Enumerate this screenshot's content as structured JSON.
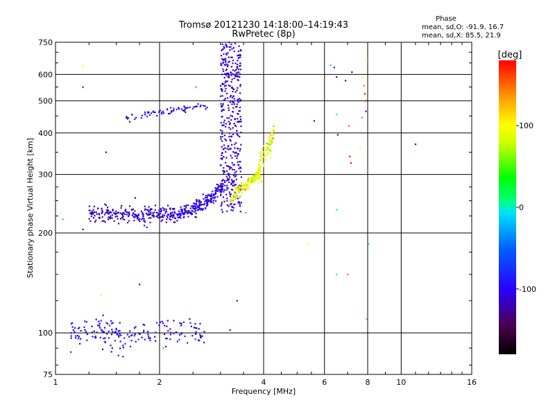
{
  "chart_data": {
    "type": "scatter",
    "title": "Tromsø 20121230 14:18:00–14:19:43",
    "subtitle": "RwPretec (8p)",
    "xlabel": "Frequency [MHz]",
    "ylabel": "Stationary phase Virtual Height [km]",
    "xscale": "log",
    "yscale": "log",
    "xlim": [
      1,
      16
    ],
    "ylim": [
      75,
      750
    ],
    "x_ticks": [
      1,
      2,
      4,
      6,
      8,
      10,
      16
    ],
    "y_ticks": [
      75,
      100,
      200,
      300,
      400,
      500,
      600,
      750
    ],
    "vertical_grid": [
      2,
      4,
      6,
      8,
      10
    ],
    "horizontal_grid": [
      100,
      200,
      300,
      400,
      500,
      600
    ],
    "grid": true,
    "info": {
      "heading": "Phase",
      "line_o": "mean, sd,O: -91.9, 16.7",
      "line_x": "mean, sd,X:  85.5, 21.9"
    },
    "colorbar": {
      "label": "[deg]",
      "range": [
        -180,
        180
      ],
      "ticks": [
        100,
        0,
        -100
      ],
      "placement": "right"
    },
    "traces": [
      {
        "x_range": [
          1.25,
          2.3
        ],
        "h_center": 228,
        "h_spread": 10,
        "count": 260,
        "phase": -110,
        "phase_sd": 15
      },
      {
        "x_range": [
          2.3,
          3.05
        ],
        "h_center": 248,
        "h_spread": 18,
        "count": 200,
        "phase": -105,
        "phase_sd": 14
      },
      {
        "x_range": [
          3.0,
          3.45
        ],
        "h_center": 420,
        "h_spread": 170,
        "count": 420,
        "phase": -110,
        "phase_sd": 12
      },
      {
        "x_range": [
          1.6,
          2.8
        ],
        "h_center": 465,
        "h_spread": 25,
        "count": 70,
        "phase": -100,
        "phase_sd": 15
      },
      {
        "x_range": [
          3.2,
          3.9
        ],
        "h_center": 275,
        "h_spread": 18,
        "count": 130,
        "phase": 95,
        "phase_sd": 18
      },
      {
        "x_range": [
          3.85,
          4.3
        ],
        "h_center": 345,
        "h_spread": 45,
        "count": 90,
        "phase": 90,
        "phase_sd": 20
      },
      {
        "x_range": [
          1.1,
          2.7
        ],
        "h_center": 100,
        "h_spread": 8,
        "count": 180,
        "phase": -105,
        "phase_sd": 16
      }
    ],
    "outliers": [
      {
        "x": 1.05,
        "y": 220,
        "phase": 20
      },
      {
        "x": 1.2,
        "y": 635,
        "phase": 90
      },
      {
        "x": 1.2,
        "y": 550,
        "phase": -120
      },
      {
        "x": 1.2,
        "y": 205,
        "phase": -120
      },
      {
        "x": 1.4,
        "y": 350,
        "phase": -110
      },
      {
        "x": 1.35,
        "y": 130,
        "phase": 90
      },
      {
        "x": 1.75,
        "y": 140,
        "phase": -110
      },
      {
        "x": 1.7,
        "y": 255,
        "phase": -110
      },
      {
        "x": 2.05,
        "y": 90,
        "phase": -5
      },
      {
        "x": 2.55,
        "y": 550,
        "phase": 150
      },
      {
        "x": 3.2,
        "y": 102,
        "phase": -120
      },
      {
        "x": 3.35,
        "y": 125,
        "phase": -110
      },
      {
        "x": 3.55,
        "y": 230,
        "phase": 150
      },
      {
        "x": 5.35,
        "y": 185,
        "phase": 100
      },
      {
        "x": 5.6,
        "y": 435,
        "phase": -120
      },
      {
        "x": 6.25,
        "y": 640,
        "phase": -10
      },
      {
        "x": 6.4,
        "y": 630,
        "phase": -100
      },
      {
        "x": 6.5,
        "y": 590,
        "phase": -120
      },
      {
        "x": 6.5,
        "y": 455,
        "phase": 0
      },
      {
        "x": 6.55,
        "y": 395,
        "phase": -120
      },
      {
        "x": 6.5,
        "y": 235,
        "phase": 0
      },
      {
        "x": 6.5,
        "y": 150,
        "phase": 0
      },
      {
        "x": 6.9,
        "y": 575,
        "phase": -120
      },
      {
        "x": 7.0,
        "y": 150,
        "phase": 150
      },
      {
        "x": 7.05,
        "y": 420,
        "phase": 150
      },
      {
        "x": 7.1,
        "y": 340,
        "phase": 180
      },
      {
        "x": 7.15,
        "y": 325,
        "phase": 180
      },
      {
        "x": 7.2,
        "y": 610,
        "phase": -120
      },
      {
        "x": 7.6,
        "y": 360,
        "phase": 100
      },
      {
        "x": 7.7,
        "y": 445,
        "phase": 150
      },
      {
        "x": 7.75,
        "y": 590,
        "phase": 100
      },
      {
        "x": 7.8,
        "y": 555,
        "phase": 150
      },
      {
        "x": 7.85,
        "y": 525,
        "phase": 180
      },
      {
        "x": 7.9,
        "y": 500,
        "phase": 180
      },
      {
        "x": 7.9,
        "y": 465,
        "phase": -120
      },
      {
        "x": 7.95,
        "y": 665,
        "phase": 110
      },
      {
        "x": 7.95,
        "y": 110,
        "phase": 150
      },
      {
        "x": 8.05,
        "y": 185,
        "phase": 10
      },
      {
        "x": 11.0,
        "y": 370,
        "phase": -110
      }
    ]
  }
}
